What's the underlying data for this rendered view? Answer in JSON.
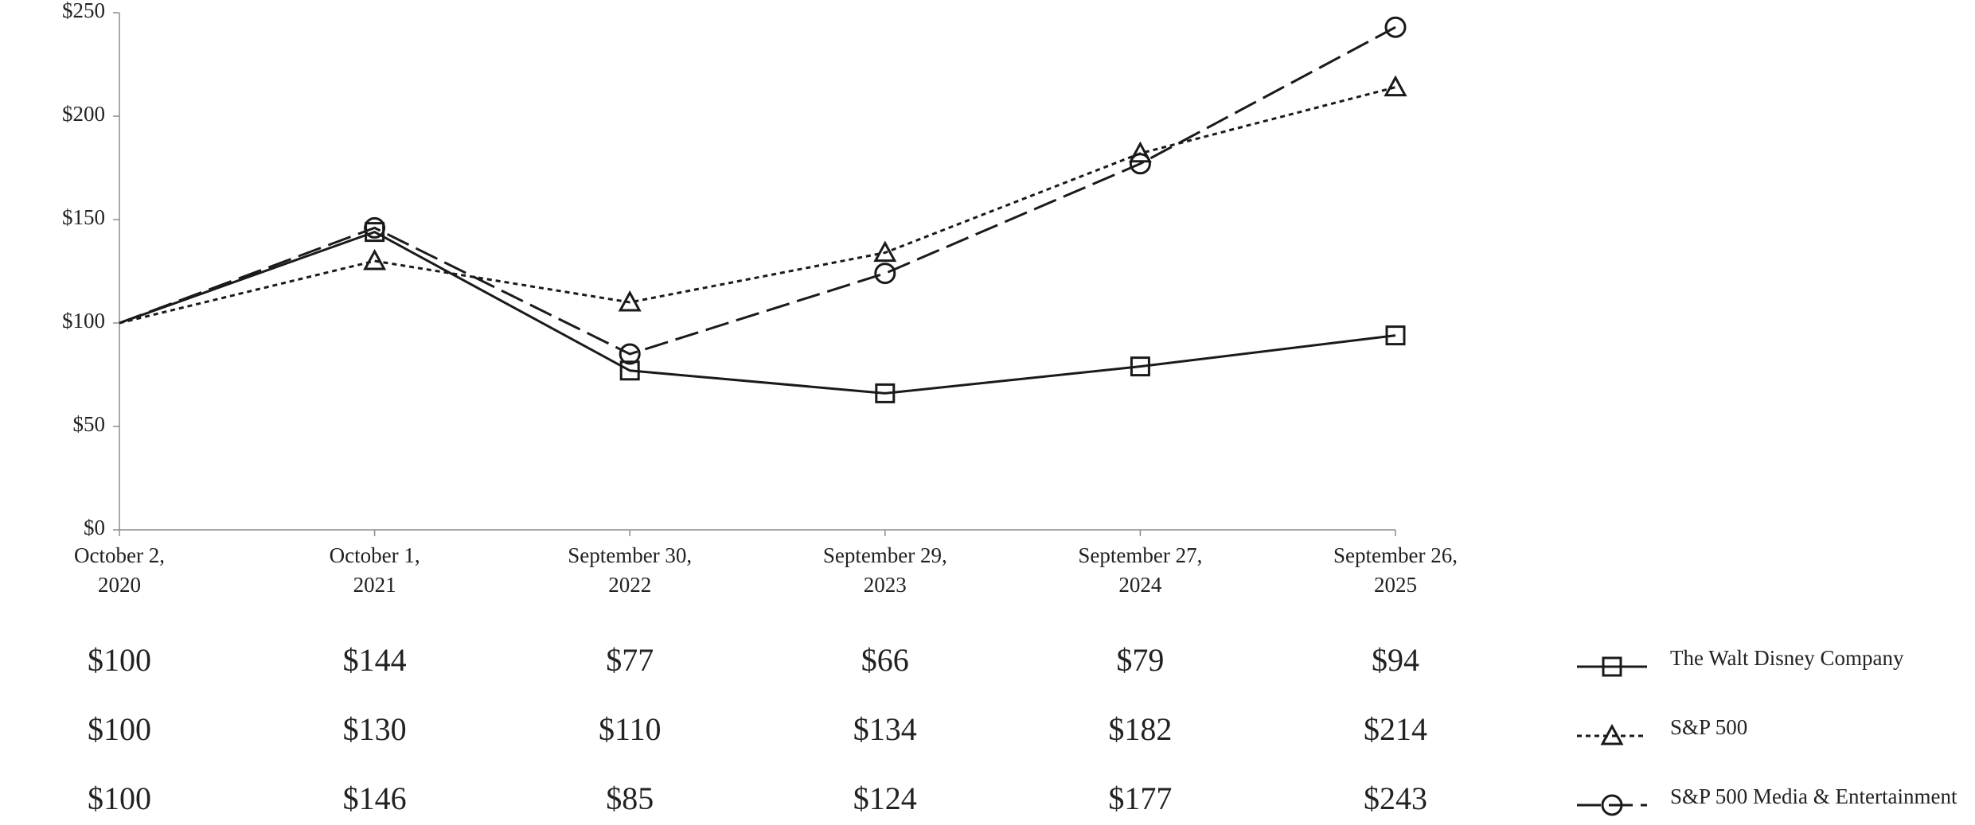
{
  "chart_data": {
    "type": "line",
    "categories": [
      "October 2,\n2020",
      "October 1,\n2021",
      "September 30,\n2022",
      "September 29,\n2023",
      "September 27,\n2024",
      "September 26,\n2025"
    ],
    "series": [
      {
        "name": "The Walt Disney Company",
        "color": "#1a1a1a",
        "dash": "solid",
        "marker": "square",
        "values": [
          100,
          144,
          77,
          66,
          79,
          94
        ],
        "value_labels": [
          "$100",
          "$144",
          "$77",
          "$66",
          "$79",
          "$94"
        ]
      },
      {
        "name": "S&P 500",
        "color": "#1a1a1a",
        "dash": "dotted",
        "marker": "triangle",
        "values": [
          100,
          130,
          110,
          134,
          182,
          214
        ],
        "value_labels": [
          "$100",
          "$130",
          "$110",
          "$134",
          "$182",
          "$214"
        ]
      },
      {
        "name": "S&P 500 Media & Entertainment",
        "color": "#1a1a1a",
        "dash": "dashed",
        "marker": "circle",
        "values": [
          100,
          146,
          85,
          124,
          177,
          243
        ],
        "value_labels": [
          "$100",
          "$146",
          "$85",
          "$124",
          "$177",
          "$243"
        ]
      }
    ],
    "ylim": [
      0,
      250
    ],
    "yticks": [
      {
        "value": 0,
        "label": "$0"
      },
      {
        "value": 50,
        "label": "$50"
      },
      {
        "value": 100,
        "label": "$100"
      },
      {
        "value": 150,
        "label": "$150"
      },
      {
        "value": 200,
        "label": "$200"
      },
      {
        "value": 250,
        "label": "$250"
      }
    ],
    "grid": false
  }
}
